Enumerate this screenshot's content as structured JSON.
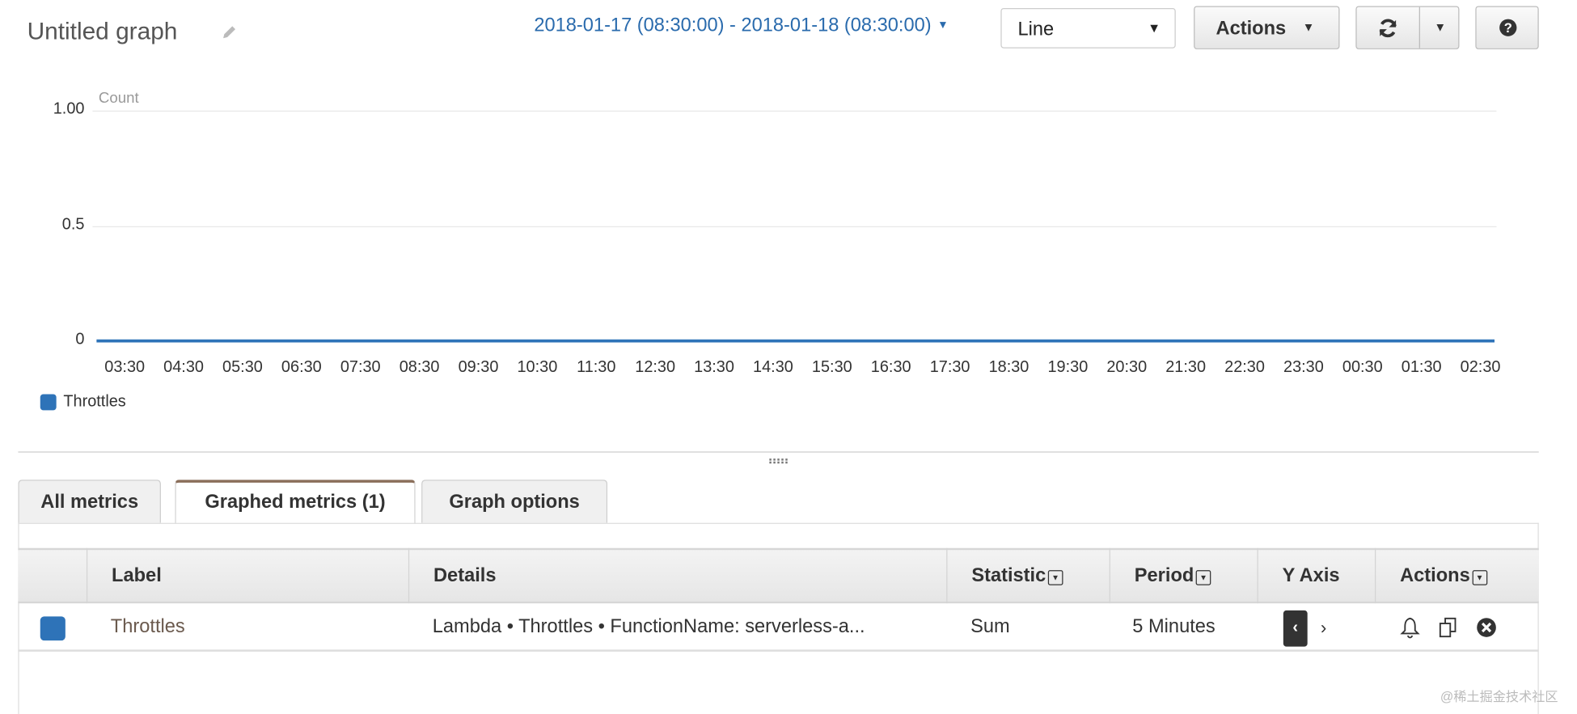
{
  "header": {
    "title": "Untitled graph",
    "date_range": "2018-01-17 (08:30:00) - 2018-01-18 (08:30:00)",
    "chart_type_select": "Line",
    "actions_label": "Actions"
  },
  "chart_data": {
    "type": "line",
    "ylabel": "Count",
    "ylim": [
      0,
      1
    ],
    "yticks": [
      "0",
      "0.5",
      "1.00"
    ],
    "x": [
      "03:30",
      "04:30",
      "05:30",
      "06:30",
      "07:30",
      "08:30",
      "09:30",
      "10:30",
      "11:30",
      "12:30",
      "13:30",
      "14:30",
      "15:30",
      "16:30",
      "17:30",
      "18:30",
      "19:30",
      "20:30",
      "21:30",
      "22:30",
      "23:30",
      "00:30",
      "01:30",
      "02:30"
    ],
    "series": [
      {
        "name": "Throttles",
        "color": "#2e73b8",
        "values": [
          0,
          0,
          0,
          0,
          0,
          0,
          0,
          0,
          0,
          0,
          0,
          0,
          0,
          0,
          0,
          0,
          0,
          0,
          0,
          0,
          0,
          0,
          0,
          0
        ]
      }
    ],
    "grid": true,
    "legend": "bottom-left"
  },
  "tabs": [
    {
      "label": "All metrics",
      "active": false
    },
    {
      "label": "Graphed metrics (1)",
      "active": true
    },
    {
      "label": "Graph options",
      "active": false
    }
  ],
  "table": {
    "columns": [
      "Label",
      "Details",
      "Statistic",
      "Period",
      "Y Axis",
      "Actions"
    ],
    "rows": [
      {
        "color": "#2e73b8",
        "label": "Throttles",
        "details": "Lambda • Throttles • FunctionName: serverless-a...",
        "statistic": "Sum",
        "period": "5 Minutes"
      }
    ]
  },
  "watermark": "@稀土掘金技术社区"
}
